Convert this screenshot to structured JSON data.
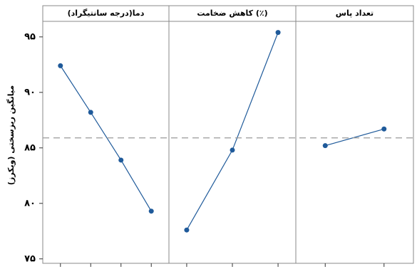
{
  "chart_data": {
    "type": "line",
    "ylabel": "میانگین ریزسختی (ویکرز)",
    "ylim": [
      74.6,
      96.4
    ],
    "yticks": [
      {
        "value": 75,
        "label": "۷۵"
      },
      {
        "value": 80,
        "label": "۸۰"
      },
      {
        "value": 85,
        "label": "۸۵"
      },
      {
        "value": 90,
        "label": "۹۰"
      },
      {
        "value": 95,
        "label": "۹۵"
      }
    ],
    "reference_line": 85.9,
    "color": "#1f5a9a",
    "panels": [
      {
        "title": "دما(درجه سانتیگراد)",
        "categories": [
          null,
          null,
          null,
          null
        ],
        "values": [
          92.4,
          88.2,
          83.9,
          79.3
        ]
      },
      {
        "title": "کاهش ضخامت (٪)",
        "categories": [
          null,
          null,
          null
        ],
        "values": [
          77.6,
          84.8,
          95.4
        ]
      },
      {
        "title": "تعداد پاس",
        "categories": [
          null,
          null
        ],
        "values": [
          85.2,
          86.7
        ]
      }
    ]
  }
}
